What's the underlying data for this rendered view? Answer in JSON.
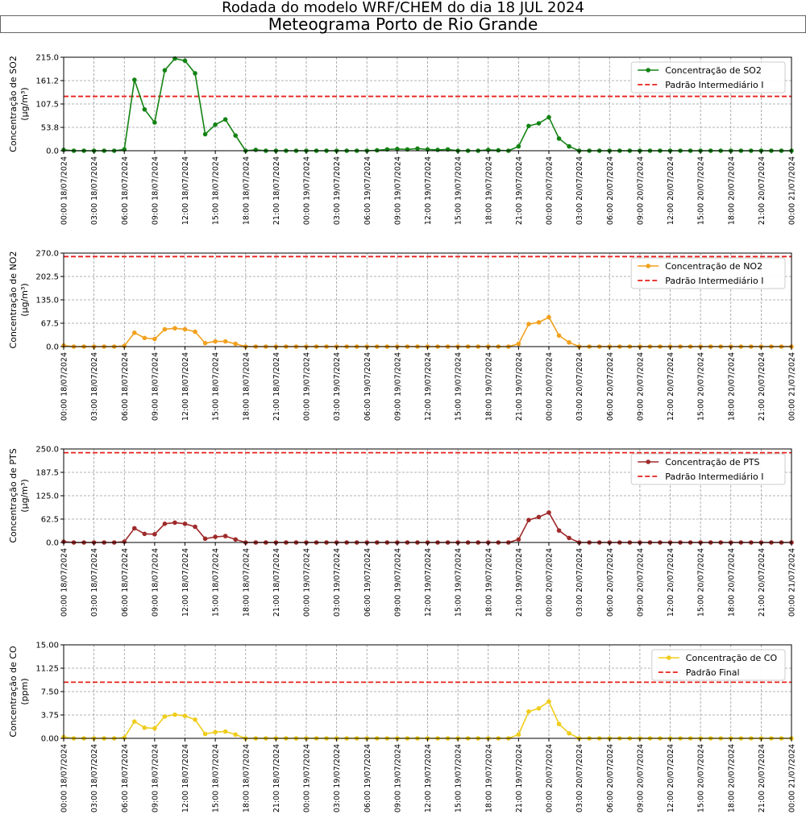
{
  "header": {
    "suptitle": "Rodada do modelo WRF/CHEM do dia 18 JUL 2024",
    "title": "Meteograma Porto de Rio Grande"
  },
  "chart_data": [
    {
      "type": "line",
      "id": "so2",
      "ylabel": "Concentração de SO2",
      "unit": "(µg/m³)",
      "ylim": [
        0,
        215
      ],
      "yticks": [
        "0.0",
        "53.8",
        "107.5",
        "161.2",
        "215.0"
      ],
      "series": [
        {
          "name": "Concentração de SO2",
          "color": "#138313",
          "x_hours": [
            0,
            1,
            2,
            3,
            4,
            5,
            6,
            7,
            8,
            9,
            10,
            11,
            12,
            13,
            14,
            15,
            16,
            17,
            18,
            19,
            20,
            21,
            22,
            23,
            24,
            25,
            26,
            27,
            28,
            29,
            30,
            31,
            32,
            33,
            34,
            35,
            36,
            37,
            38,
            39,
            40,
            41,
            42,
            43,
            44,
            45,
            46,
            47,
            48,
            49,
            50,
            51,
            52,
            53,
            54,
            55,
            56,
            57,
            58,
            59,
            60,
            61,
            62,
            63,
            64,
            65,
            66,
            67,
            68,
            69,
            70,
            71,
            72
          ],
          "values": [
            2,
            0,
            0,
            0,
            0,
            0,
            3,
            163,
            95,
            65,
            185,
            212,
            207,
            178,
            38,
            60,
            72,
            35,
            0,
            2,
            0,
            0,
            0,
            0,
            0,
            0,
            0,
            0,
            0,
            0,
            0,
            1,
            3,
            4,
            3,
            5,
            3,
            2,
            3,
            0,
            0,
            0,
            2,
            1,
            0,
            10,
            57,
            63,
            77,
            28,
            10,
            0,
            0,
            0,
            0,
            0,
            0,
            0,
            0,
            0,
            0,
            0,
            0,
            0,
            0,
            0,
            0,
            0,
            0,
            0,
            0,
            0,
            0
          ]
        }
      ],
      "reference": {
        "name": "Padrão Intermediário I",
        "value": 125,
        "color": "#e8211b"
      }
    },
    {
      "type": "line",
      "id": "no2",
      "ylabel": "Concentração de NO2",
      "unit": "(µg/m³)",
      "ylim": [
        0,
        270
      ],
      "yticks": [
        "0.0",
        "67.5",
        "135.0",
        "202.5",
        "270.0"
      ],
      "series": [
        {
          "name": "Concentração de NO2",
          "color": "#f2a11e",
          "x_hours": [
            0,
            1,
            2,
            3,
            4,
            5,
            6,
            7,
            8,
            9,
            10,
            11,
            12,
            13,
            14,
            15,
            16,
            17,
            18,
            19,
            20,
            21,
            22,
            23,
            24,
            25,
            26,
            27,
            28,
            29,
            30,
            31,
            32,
            33,
            34,
            35,
            36,
            37,
            38,
            39,
            40,
            41,
            42,
            43,
            44,
            45,
            46,
            47,
            48,
            49,
            50,
            51,
            52,
            53,
            54,
            55,
            56,
            57,
            58,
            59,
            60,
            61,
            62,
            63,
            64,
            65,
            66,
            67,
            68,
            69,
            70,
            71,
            72
          ],
          "values": [
            3,
            0,
            0,
            0,
            0,
            0,
            2,
            40,
            25,
            22,
            50,
            53,
            50,
            43,
            10,
            15,
            15,
            8,
            0,
            0,
            0,
            0,
            0,
            0,
            0,
            0,
            0,
            0,
            0,
            0,
            0,
            0,
            0,
            0,
            0,
            0,
            0,
            0,
            0,
            0,
            0,
            0,
            0,
            0,
            0,
            8,
            65,
            70,
            85,
            32,
            12,
            0,
            0,
            0,
            0,
            0,
            0,
            0,
            0,
            0,
            0,
            0,
            0,
            0,
            0,
            0,
            0,
            0,
            0,
            0,
            0,
            0,
            0
          ]
        }
      ],
      "reference": {
        "name": "Padrão Intermediário I",
        "value": 260,
        "color": "#e8211b"
      }
    },
    {
      "type": "line",
      "id": "pts",
      "ylabel": "Concentração de PTS",
      "unit": "(µg/m³)",
      "ylim": [
        0,
        250
      ],
      "yticks": [
        "0.0",
        "62.5",
        "125.0",
        "187.5",
        "250.0"
      ],
      "series": [
        {
          "name": "Concentração de PTS",
          "color": "#9e2a2a",
          "x_hours": [
            0,
            1,
            2,
            3,
            4,
            5,
            6,
            7,
            8,
            9,
            10,
            11,
            12,
            13,
            14,
            15,
            16,
            17,
            18,
            19,
            20,
            21,
            22,
            23,
            24,
            25,
            26,
            27,
            28,
            29,
            30,
            31,
            32,
            33,
            34,
            35,
            36,
            37,
            38,
            39,
            40,
            41,
            42,
            43,
            44,
            45,
            46,
            47,
            48,
            49,
            50,
            51,
            52,
            53,
            54,
            55,
            56,
            57,
            58,
            59,
            60,
            61,
            62,
            63,
            64,
            65,
            66,
            67,
            68,
            69,
            70,
            71,
            72
          ],
          "values": [
            2,
            0,
            0,
            0,
            0,
            0,
            2,
            38,
            23,
            22,
            50,
            53,
            50,
            42,
            10,
            15,
            17,
            8,
            0,
            0,
            0,
            0,
            0,
            0,
            0,
            0,
            0,
            0,
            0,
            0,
            0,
            0,
            0,
            0,
            0,
            0,
            0,
            0,
            0,
            0,
            0,
            0,
            0,
            0,
            0,
            8,
            60,
            68,
            80,
            32,
            12,
            0,
            0,
            0,
            0,
            0,
            0,
            0,
            0,
            0,
            0,
            0,
            0,
            0,
            0,
            0,
            0,
            0,
            0,
            0,
            0,
            0,
            0
          ]
        }
      ],
      "reference": {
        "name": "Padrão Intermediário I",
        "value": 240,
        "color": "#e8211b"
      }
    },
    {
      "type": "line",
      "id": "co",
      "ylabel": "Concentração de CO",
      "unit": "(ppm)",
      "ylim": [
        0,
        15
      ],
      "yticks": [
        "0.00",
        "3.75",
        "7.50",
        "11.25",
        "15.00"
      ],
      "series": [
        {
          "name": "Concentração de CO",
          "color": "#efcd1c",
          "x_hours": [
            0,
            1,
            2,
            3,
            4,
            5,
            6,
            7,
            8,
            9,
            10,
            11,
            12,
            13,
            14,
            15,
            16,
            17,
            18,
            19,
            20,
            21,
            22,
            23,
            24,
            25,
            26,
            27,
            28,
            29,
            30,
            31,
            32,
            33,
            34,
            35,
            36,
            37,
            38,
            39,
            40,
            41,
            42,
            43,
            44,
            45,
            46,
            47,
            48,
            49,
            50,
            51,
            52,
            53,
            54,
            55,
            56,
            57,
            58,
            59,
            60,
            61,
            62,
            63,
            64,
            65,
            66,
            67,
            68,
            69,
            70,
            71,
            72
          ],
          "values": [
            0.2,
            0,
            0,
            0,
            0,
            0,
            0.1,
            2.7,
            1.7,
            1.6,
            3.5,
            3.8,
            3.6,
            3.0,
            0.7,
            1.0,
            1.1,
            0.6,
            0,
            0,
            0,
            0,
            0,
            0,
            0,
            0,
            0,
            0,
            0,
            0,
            0,
            0,
            0,
            0,
            0,
            0,
            0,
            0,
            0,
            0,
            0,
            0,
            0,
            0,
            0,
            0.6,
            4.3,
            4.8,
            5.9,
            2.3,
            0.8,
            0,
            0,
            0,
            0,
            0,
            0,
            0,
            0,
            0,
            0,
            0,
            0,
            0,
            0,
            0,
            0,
            0,
            0,
            0,
            0,
            0,
            0
          ]
        }
      ],
      "reference": {
        "name": "Padrão Final",
        "value": 9,
        "color": "#e8211b"
      }
    }
  ],
  "xticks": [
    "00:00 18/07/2024",
    "03:00 18/07/2024",
    "06:00 18/07/2024",
    "09:00 18/07/2024",
    "12:00 18/07/2024",
    "15:00 18/07/2024",
    "18:00 18/07/2024",
    "21:00 18/07/2024",
    "00:00 19/07/2024",
    "03:00 19/07/2024",
    "06:00 19/07/2024",
    "09:00 19/07/2024",
    "12:00 19/07/2024",
    "15:00 19/07/2024",
    "18:00 19/07/2024",
    "21:00 19/07/2024",
    "00:00 20/07/2024",
    "03:00 20/07/2024",
    "06:00 20/07/2024",
    "09:00 20/07/2024",
    "12:00 20/07/2024",
    "15:00 20/07/2024",
    "18:00 20/07/2024",
    "21:00 20/07/2024",
    "00:00 21/07/2024"
  ],
  "xlim_hours": [
    0,
    72
  ]
}
